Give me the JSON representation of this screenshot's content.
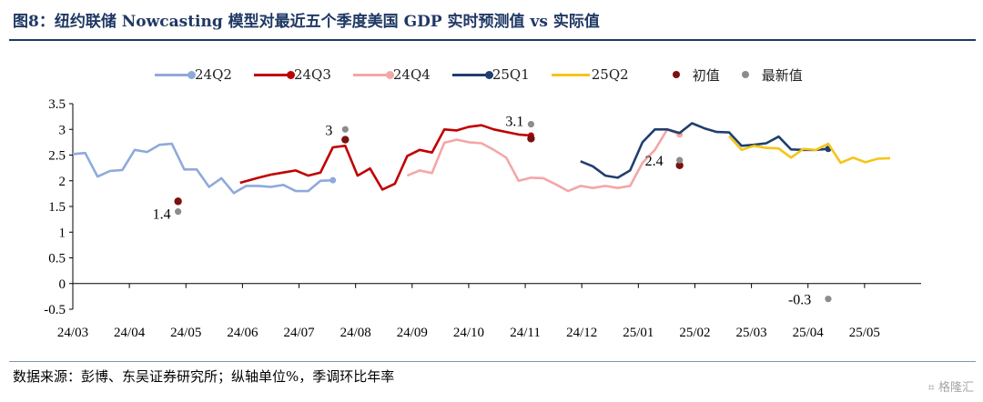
{
  "title": "图8：纽约联储 Nowcasting 模型对最近五个季度美国 GDP 实时预测值 vs 实际值",
  "footer": "数据来源：彭博、东吴证券研究所；纵轴单位%，季调环比年率",
  "watermark": "⌗ 格隆汇",
  "colors": {
    "24Q2": "#8eaadb",
    "24Q3": "#c00000",
    "24Q4": "#f4a6a8",
    "25Q1": "#1f3f6e",
    "25Q2": "#f5c518",
    "initial": "#7b1010",
    "latest": "#8c8c8c"
  },
  "chart_data": {
    "type": "line",
    "ylim": [
      -0.5,
      3.5
    ],
    "yticks": [
      "3.5",
      "3",
      "2.5",
      "2",
      "1.5",
      "1",
      "0.5",
      "0",
      "-0.5"
    ],
    "ytick_values": [
      3.5,
      3,
      2.5,
      2,
      1.5,
      1,
      0.5,
      0,
      -0.5
    ],
    "xticks": [
      "24/03",
      "24/04",
      "24/05",
      "24/06",
      "24/07",
      "24/08",
      "24/09",
      "24/10",
      "24/11",
      "24/12",
      "25/01",
      "25/02",
      "25/03",
      "25/04",
      "25/05"
    ],
    "x_unit": "weeks since 24/03",
    "legend": [
      "24Q2",
      "24Q3",
      "24Q4",
      "25Q1",
      "25Q2",
      "初值",
      "最新值"
    ],
    "series": [
      {
        "name": "24Q2",
        "color_key": "24Q2",
        "points": [
          [
            0,
            2.52
          ],
          [
            1,
            2.54
          ],
          [
            2,
            2.08
          ],
          [
            3,
            2.19
          ],
          [
            4,
            2.21
          ],
          [
            5,
            2.6
          ],
          [
            6,
            2.56
          ],
          [
            7,
            2.7
          ],
          [
            8,
            2.72
          ],
          [
            9,
            2.22
          ],
          [
            10,
            2.22
          ],
          [
            11,
            1.88
          ],
          [
            12,
            2.05
          ],
          [
            13,
            1.76
          ],
          [
            14,
            1.9
          ],
          [
            15,
            1.9
          ],
          [
            16,
            1.88
          ],
          [
            17,
            1.92
          ],
          [
            18,
            1.8
          ],
          [
            19,
            1.8
          ],
          [
            20,
            2.0
          ],
          [
            21,
            2.01
          ]
        ]
      },
      {
        "name": "24Q3",
        "color_key": "24Q3",
        "points": [
          [
            13.5,
            1.96
          ],
          [
            15,
            2.06
          ],
          [
            16,
            2.12
          ],
          [
            17,
            2.16
          ],
          [
            18,
            2.2
          ],
          [
            19,
            2.1
          ],
          [
            20,
            2.16
          ],
          [
            21,
            2.65
          ],
          [
            22,
            2.68
          ],
          [
            23,
            2.1
          ],
          [
            24,
            2.24
          ],
          [
            25,
            1.83
          ],
          [
            26,
            1.94
          ],
          [
            27,
            2.48
          ],
          [
            28,
            2.6
          ],
          [
            29,
            2.55
          ],
          [
            30,
            3.0
          ],
          [
            31,
            2.98
          ],
          [
            32,
            3.05
          ],
          [
            33,
            3.08
          ],
          [
            34,
            3.0
          ],
          [
            35,
            2.95
          ],
          [
            36,
            2.9
          ],
          [
            37,
            2.88
          ]
        ]
      },
      {
        "name": "24Q4",
        "color_key": "24Q4",
        "points": [
          [
            27,
            2.1
          ],
          [
            28,
            2.2
          ],
          [
            29,
            2.15
          ],
          [
            30,
            2.74
          ],
          [
            31,
            2.8
          ],
          [
            32,
            2.75
          ],
          [
            33,
            2.73
          ],
          [
            34,
            2.6
          ],
          [
            35,
            2.45
          ],
          [
            36,
            2.0
          ],
          [
            37,
            2.06
          ],
          [
            38,
            2.05
          ],
          [
            39,
            1.93
          ],
          [
            40,
            1.8
          ],
          [
            41,
            1.9
          ],
          [
            42,
            1.86
          ],
          [
            43,
            1.9
          ],
          [
            44,
            1.86
          ],
          [
            45,
            1.9
          ],
          [
            46,
            2.35
          ],
          [
            47,
            2.6
          ],
          [
            48,
            3.0
          ],
          [
            49,
            2.9
          ]
        ]
      },
      {
        "name": "25Q1",
        "color_key": "25Q1",
        "points": [
          [
            41,
            2.38
          ],
          [
            42,
            2.28
          ],
          [
            43,
            2.1
          ],
          [
            44,
            2.06
          ],
          [
            45,
            2.2
          ],
          [
            46,
            2.75
          ],
          [
            47,
            3.0
          ],
          [
            48,
            3.0
          ],
          [
            49,
            2.93
          ],
          [
            50,
            3.12
          ],
          [
            51,
            3.02
          ],
          [
            52,
            2.95
          ],
          [
            53,
            2.94
          ],
          [
            54,
            2.68
          ],
          [
            55,
            2.7
          ],
          [
            56,
            2.73
          ],
          [
            57,
            2.86
          ],
          [
            58,
            2.61
          ],
          [
            59,
            2.6
          ],
          [
            60,
            2.6
          ],
          [
            61,
            2.62
          ]
        ]
      },
      {
        "name": "25Q2",
        "color_key": "25Q2",
        "points": [
          [
            53,
            2.87
          ],
          [
            54,
            2.6
          ],
          [
            55,
            2.68
          ],
          [
            56,
            2.64
          ],
          [
            57,
            2.63
          ],
          [
            58,
            2.45
          ],
          [
            59,
            2.62
          ],
          [
            60,
            2.6
          ],
          [
            61,
            2.72
          ],
          [
            62,
            2.35
          ],
          [
            63,
            2.45
          ],
          [
            64,
            2.36
          ],
          [
            65,
            2.43
          ],
          [
            66,
            2.44
          ]
        ]
      }
    ],
    "initial_points": [
      {
        "x": 8.5,
        "y": 1.6
      },
      {
        "x": 22.0,
        "y": 2.8
      },
      {
        "x": 37.0,
        "y": 2.82
      },
      {
        "x": 49.0,
        "y": 2.3
      }
    ],
    "latest_points": [
      {
        "x": 8.5,
        "y": 1.4
      },
      {
        "x": 22.0,
        "y": 3.0
      },
      {
        "x": 37.0,
        "y": 3.1
      },
      {
        "x": 49.0,
        "y": 2.4
      },
      {
        "x": 61.0,
        "y": -0.3
      }
    ],
    "annotations": [
      {
        "text": "1.4",
        "x": 8.5,
        "y": 1.4
      },
      {
        "text": "3",
        "x": 22.0,
        "y": 3.0
      },
      {
        "text": "3.1",
        "x": 37.0,
        "y": 3.1
      },
      {
        "text": "2.4",
        "x": 49.0,
        "y": 2.4
      },
      {
        "text": "-0.3",
        "x": 61.0,
        "y": -0.3
      }
    ]
  }
}
